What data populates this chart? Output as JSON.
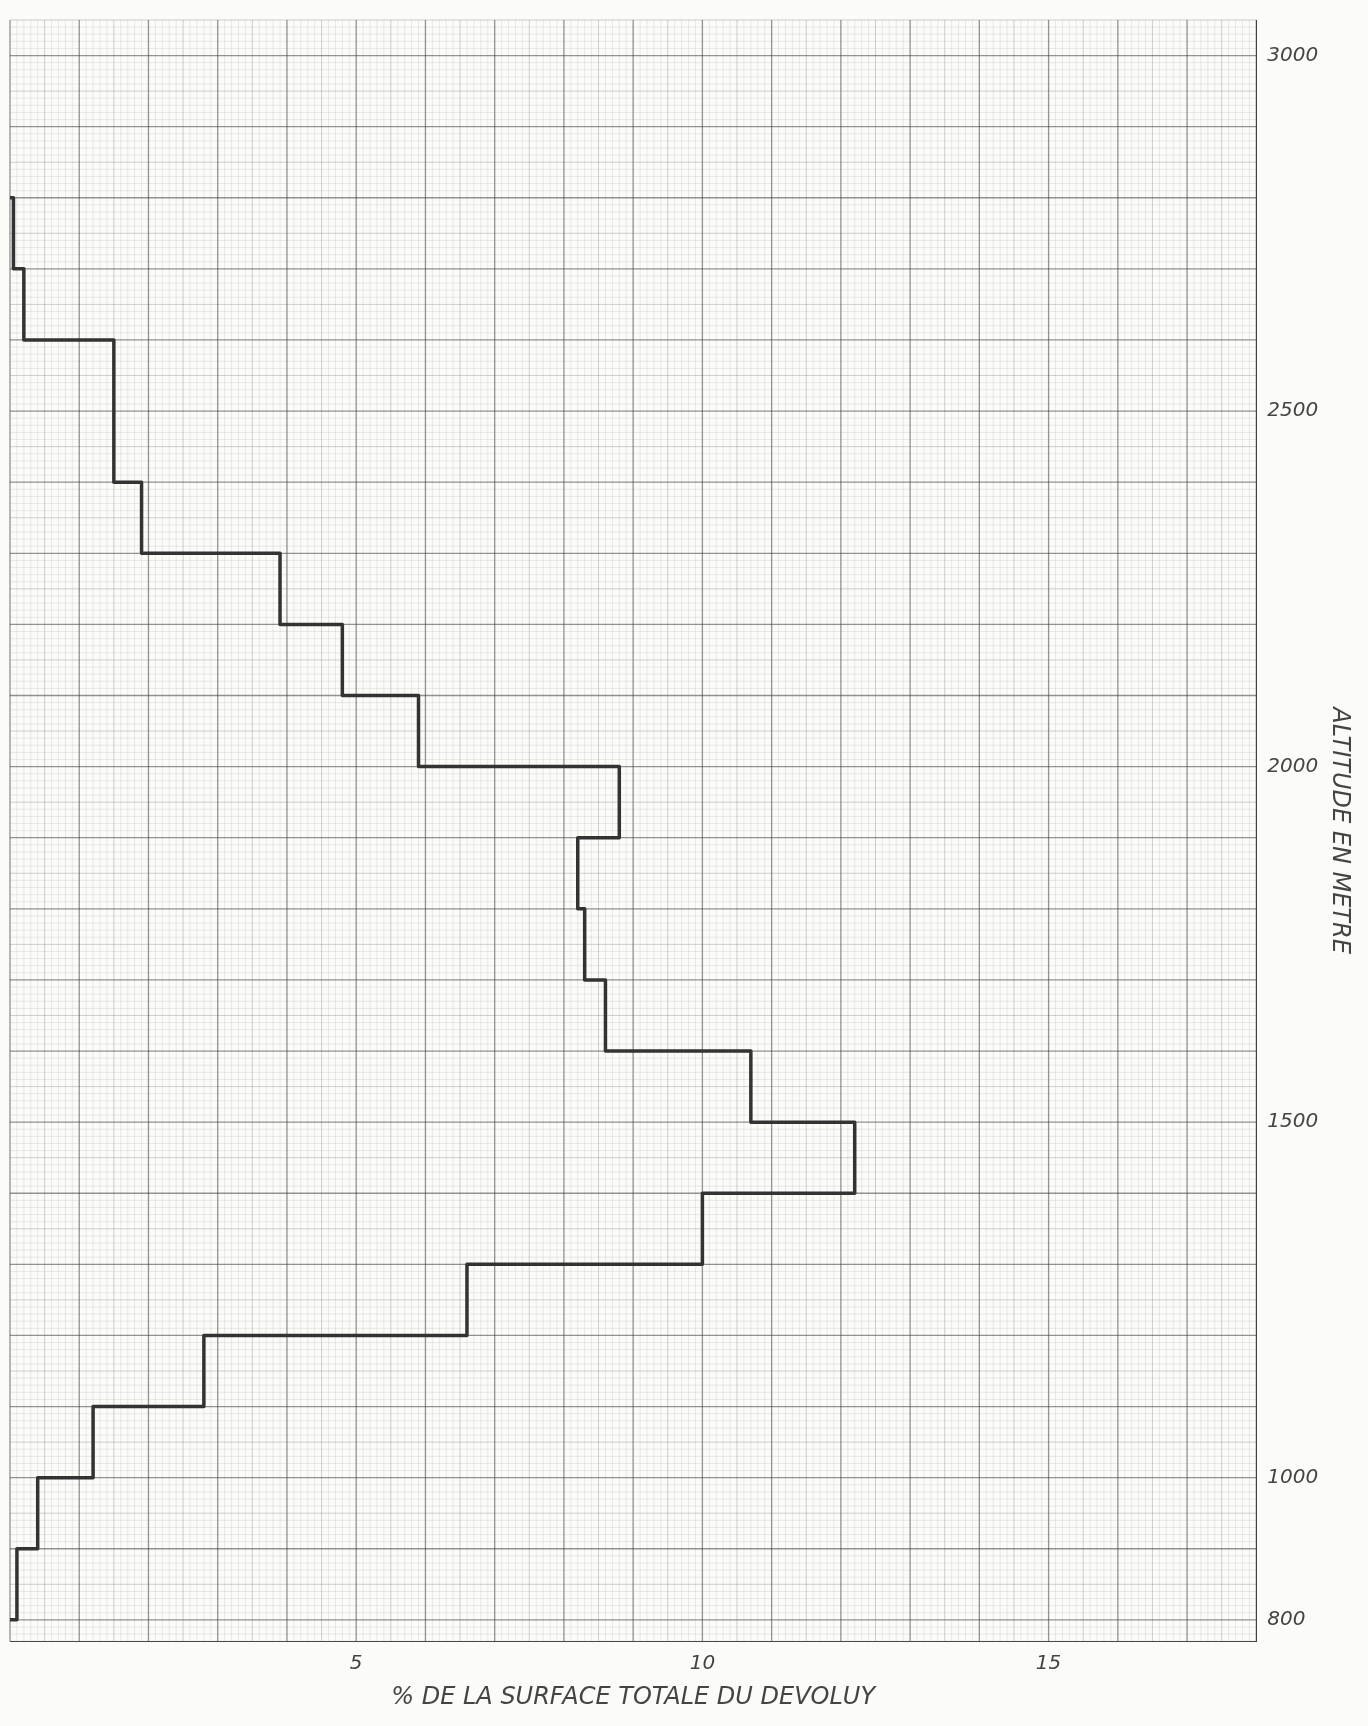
{
  "chart_data": {
    "type": "histogram",
    "orientation": "horizontal",
    "xlabel": "% DE LA SURFACE TOTALE DU DEVOLUY",
    "ylabel": "ALTITUDE EN METRE",
    "bins": [
      800,
      900,
      1000,
      1100,
      1200,
      1300,
      1400,
      1500,
      1600,
      1700,
      1800,
      1900,
      2000,
      2100,
      2200,
      2300,
      2400,
      2500,
      2600,
      2700,
      2800
    ],
    "values": [
      0.1,
      0.4,
      1.2,
      2.8,
      6.6,
      10.0,
      12.2,
      10.7,
      8.6,
      8.3,
      8.2,
      8.8,
      5.9,
      4.8,
      3.9,
      1.9,
      1.5,
      1.5,
      0.2,
      0.05
    ],
    "color": "#333333",
    "xlim": [
      0,
      18
    ],
    "xticks": [
      5,
      10,
      15
    ],
    "ylim": [
      770,
      3050
    ],
    "yticks": [
      800,
      1000,
      1500,
      2000,
      2500,
      3000
    ],
    "grid": true,
    "legend": false
  }
}
